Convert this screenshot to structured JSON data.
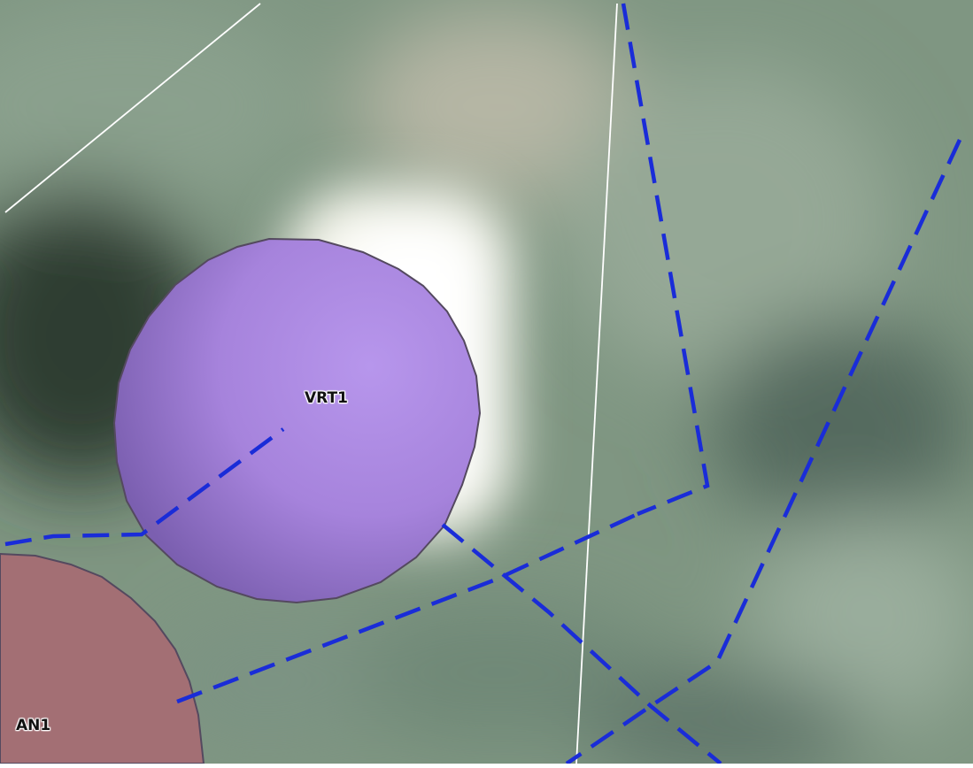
{
  "map": {
    "features": {
      "vrt1": {
        "label": "VRT1",
        "fill": "#ad86e0",
        "stroke": "#54495f"
      },
      "an1": {
        "label": "AN1",
        "fill": "#a66b73",
        "stroke": "#54495f"
      }
    },
    "style": {
      "dashed_lines": "#1a2cd8",
      "boundary_lines": "#ffffff",
      "background": "#7f9682"
    }
  }
}
